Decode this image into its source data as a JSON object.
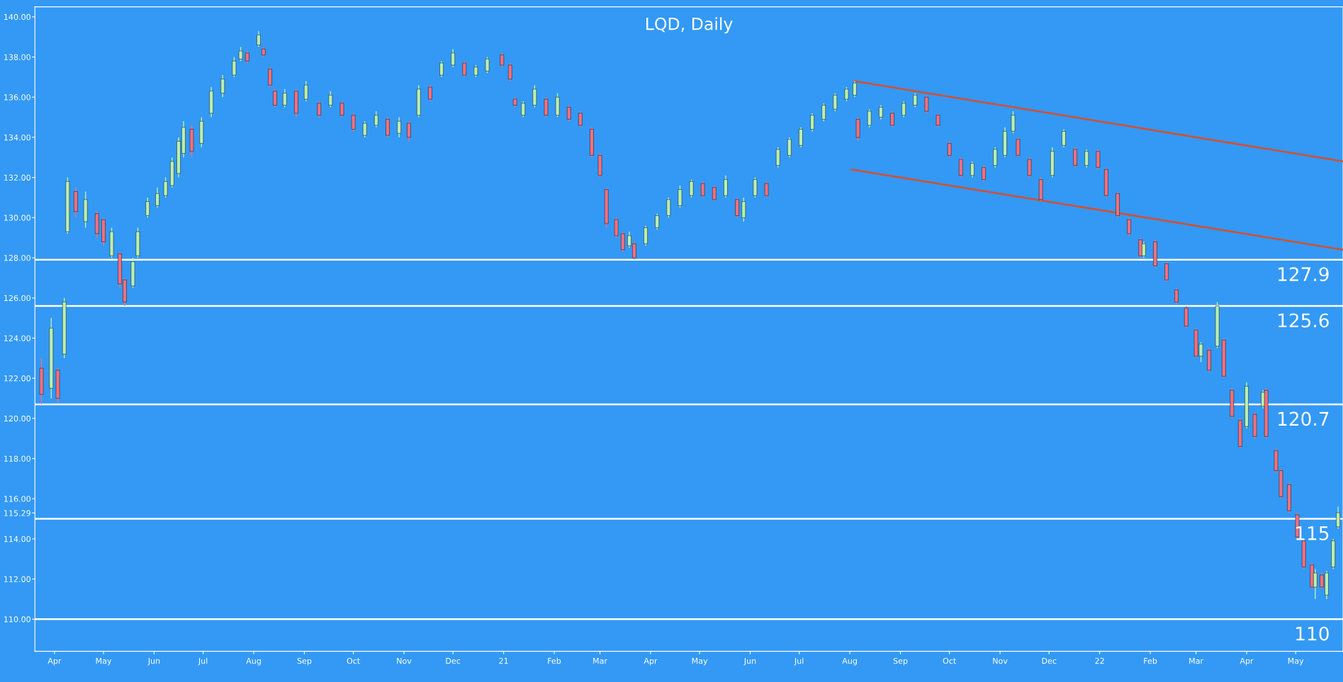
{
  "chart_data": {
    "type": "candlestick",
    "title": "LQD, Daily",
    "x": [
      "2020-03-24",
      "2020-03-30",
      "2020-04-03",
      "2020-04-07",
      "2020-04-09",
      "2020-04-14",
      "2020-04-20",
      "2020-04-27",
      "2020-05-01",
      "2020-05-06",
      "2020-05-11",
      "2020-05-14",
      "2020-05-19",
      "2020-05-22",
      "2020-05-28",
      "2020-06-03",
      "2020-06-08",
      "2020-06-12",
      "2020-06-16",
      "2020-06-19",
      "2020-06-24",
      "2020-06-30",
      "2020-07-06",
      "2020-07-13",
      "2020-07-20",
      "2020-07-24",
      "2020-07-28",
      "2020-08-04",
      "2020-08-07",
      "2020-08-11",
      "2020-08-14",
      "2020-08-20",
      "2020-08-27",
      "2020-09-02",
      "2020-09-10",
      "2020-09-17",
      "2020-09-24",
      "2020-10-01",
      "2020-10-08",
      "2020-10-15",
      "2020-10-22",
      "2020-10-29",
      "2020-11-04",
      "2020-11-10",
      "2020-11-17",
      "2020-11-24",
      "2020-12-01",
      "2020-12-08",
      "2020-12-15",
      "2020-12-22",
      "2020-12-31",
      "2021-01-05",
      "2021-01-08",
      "2021-01-13",
      "2021-01-20",
      "2021-01-27",
      "2021-02-03",
      "2021-02-10",
      "2021-02-17",
      "2021-02-24",
      "2021-03-01",
      "2021-03-05",
      "2021-03-11",
      "2021-03-15",
      "2021-03-19",
      "2021-03-22",
      "2021-03-29",
      "2021-04-05",
      "2021-04-12",
      "2021-04-19",
      "2021-04-26",
      "2021-05-03",
      "2021-05-10",
      "2021-05-17",
      "2021-05-24",
      "2021-05-28",
      "2021-06-04",
      "2021-06-11",
      "2021-06-18",
      "2021-06-25",
      "2021-07-02",
      "2021-07-09",
      "2021-07-16",
      "2021-07-23",
      "2021-07-30",
      "2021-08-04",
      "2021-08-06",
      "2021-08-13",
      "2021-08-20",
      "2021-08-27",
      "2021-09-03",
      "2021-09-10",
      "2021-09-17",
      "2021-09-24",
      "2021-10-01",
      "2021-10-08",
      "2021-10-15",
      "2021-10-22",
      "2021-10-29",
      "2021-11-04",
      "2021-11-09",
      "2021-11-12",
      "2021-11-19",
      "2021-11-26",
      "2021-12-03",
      "2021-12-10",
      "2021-12-17",
      "2021-12-24",
      "2021-12-31",
      "2022-01-05",
      "2022-01-12",
      "2022-01-19",
      "2022-01-26",
      "2022-01-28",
      "2022-02-04",
      "2022-02-11",
      "2022-02-17",
      "2022-02-23",
      "2022-03-01",
      "2022-03-04",
      "2022-03-09",
      "2022-03-14",
      "2022-03-18",
      "2022-03-23",
      "2022-03-28",
      "2022-04-01",
      "2022-04-06",
      "2022-04-11",
      "2022-04-13",
      "2022-04-19",
      "2022-04-22",
      "2022-04-27",
      "2022-05-02",
      "2022-05-06",
      "2022-05-11",
      "2022-05-13",
      "2022-05-17",
      "2022-05-20",
      "2022-05-24",
      "2022-05-27"
    ],
    "ohlc": [
      [
        122.5,
        123.0,
        120.7,
        121.2
      ],
      [
        121.5,
        125.0,
        121.0,
        124.5
      ],
      [
        122.4,
        122.5,
        120.8,
        121.0
      ],
      [
        123.2,
        126.0,
        123.0,
        125.8
      ],
      [
        129.3,
        132.0,
        129.2,
        131.8
      ],
      [
        131.3,
        131.5,
        130.0,
        130.3
      ],
      [
        129.8,
        131.3,
        129.5,
        130.9
      ],
      [
        130.2,
        130.3,
        129.0,
        129.2
      ],
      [
        129.9,
        130.0,
        128.6,
        128.8
      ],
      [
        128.1,
        129.5,
        128.0,
        129.3
      ],
      [
        128.2,
        128.3,
        126.5,
        126.7
      ],
      [
        126.9,
        127.0,
        125.6,
        125.8
      ],
      [
        126.6,
        128.0,
        126.5,
        127.8
      ],
      [
        128.1,
        129.5,
        128.0,
        129.3
      ],
      [
        130.1,
        131.0,
        130.0,
        130.8
      ],
      [
        130.6,
        131.5,
        130.5,
        131.2
      ],
      [
        131.1,
        132.0,
        131.0,
        131.8
      ],
      [
        131.6,
        133.0,
        131.5,
        132.8
      ],
      [
        132.2,
        134.0,
        132.0,
        133.8
      ],
      [
        133.2,
        134.8,
        133.0,
        134.5
      ],
      [
        134.4,
        134.6,
        133.0,
        133.3
      ],
      [
        133.7,
        135.0,
        133.5,
        134.8
      ],
      [
        135.2,
        136.5,
        135.0,
        136.3
      ],
      [
        136.2,
        137.1,
        136.0,
        136.9
      ],
      [
        137.1,
        138.0,
        137.0,
        137.8
      ],
      [
        137.9,
        138.5,
        137.8,
        138.3
      ],
      [
        138.2,
        138.3,
        137.7,
        137.8
      ],
      [
        138.6,
        139.3,
        138.5,
        139.1
      ],
      [
        138.4,
        138.5,
        138.0,
        138.1
      ],
      [
        137.4,
        137.5,
        136.5,
        136.6
      ],
      [
        136.3,
        136.4,
        135.5,
        135.6
      ],
      [
        135.6,
        136.4,
        135.5,
        136.2
      ],
      [
        136.3,
        136.4,
        135.0,
        135.2
      ],
      [
        135.9,
        136.8,
        135.8,
        136.6
      ],
      [
        135.7,
        135.8,
        135.0,
        135.1
      ],
      [
        135.6,
        136.3,
        135.5,
        136.1
      ],
      [
        135.7,
        135.8,
        135.0,
        135.1
      ],
      [
        135.1,
        135.2,
        134.3,
        134.4
      ],
      [
        134.1,
        134.8,
        134.0,
        134.7
      ],
      [
        134.6,
        135.3,
        134.5,
        135.1
      ],
      [
        134.9,
        135.0,
        134.0,
        134.1
      ],
      [
        134.2,
        135.0,
        134.0,
        134.8
      ],
      [
        134.7,
        134.8,
        133.8,
        134.0
      ],
      [
        135.1,
        136.6,
        135.0,
        136.4
      ],
      [
        136.5,
        136.6,
        135.8,
        135.9
      ],
      [
        137.1,
        137.8,
        137.0,
        137.7
      ],
      [
        137.6,
        138.4,
        137.5,
        138.2
      ],
      [
        137.7,
        137.8,
        137.0,
        137.1
      ],
      [
        137.1,
        137.6,
        137.0,
        137.5
      ],
      [
        137.3,
        138.0,
        137.2,
        137.9
      ],
      [
        138.1,
        138.2,
        137.5,
        137.6
      ],
      [
        137.6,
        137.7,
        136.8,
        136.9
      ],
      [
        135.9,
        136.0,
        135.5,
        135.6
      ],
      [
        135.1,
        135.8,
        135.0,
        135.7
      ],
      [
        135.6,
        136.6,
        135.5,
        136.4
      ],
      [
        135.9,
        136.0,
        135.0,
        135.1
      ],
      [
        135.1,
        136.2,
        135.0,
        136.0
      ],
      [
        135.5,
        135.6,
        134.8,
        134.9
      ],
      [
        135.2,
        135.3,
        134.5,
        134.6
      ],
      [
        134.4,
        134.5,
        133.0,
        133.1
      ],
      [
        133.1,
        133.2,
        132.0,
        132.1
      ],
      [
        131.4,
        131.5,
        129.5,
        129.7
      ],
      [
        129.9,
        130.0,
        129.0,
        129.1
      ],
      [
        129.2,
        129.3,
        128.3,
        128.4
      ],
      [
        128.6,
        129.3,
        128.5,
        129.1
      ],
      [
        128.7,
        128.8,
        127.9,
        128.0
      ],
      [
        128.7,
        129.6,
        128.6,
        129.5
      ],
      [
        129.5,
        130.2,
        129.4,
        130.1
      ],
      [
        130.1,
        131.0,
        130.0,
        130.9
      ],
      [
        130.6,
        131.6,
        130.5,
        131.4
      ],
      [
        131.1,
        131.9,
        131.0,
        131.8
      ],
      [
        131.7,
        131.8,
        131.0,
        131.1
      ],
      [
        131.5,
        131.6,
        130.8,
        130.9
      ],
      [
        131.1,
        132.1,
        131.0,
        131.9
      ],
      [
        130.9,
        131.0,
        130.0,
        130.1
      ],
      [
        130.0,
        131.0,
        129.8,
        130.8
      ],
      [
        131.1,
        132.0,
        131.0,
        131.9
      ],
      [
        131.7,
        131.8,
        131.0,
        131.1
      ],
      [
        132.6,
        133.5,
        132.5,
        133.4
      ],
      [
        133.1,
        134.0,
        133.0,
        133.9
      ],
      [
        133.6,
        134.5,
        133.5,
        134.4
      ],
      [
        134.4,
        135.2,
        134.3,
        135.1
      ],
      [
        134.9,
        135.7,
        134.8,
        135.6
      ],
      [
        135.4,
        136.2,
        135.3,
        136.1
      ],
      [
        135.9,
        136.5,
        135.8,
        136.4
      ],
      [
        136.1,
        136.8,
        136.0,
        136.7
      ],
      [
        134.9,
        135.0,
        133.8,
        134.0
      ],
      [
        134.6,
        135.4,
        134.5,
        135.3
      ],
      [
        135.0,
        135.6,
        134.9,
        135.5
      ],
      [
        135.2,
        135.3,
        134.5,
        134.6
      ],
      [
        135.1,
        135.8,
        135.0,
        135.7
      ],
      [
        135.6,
        136.2,
        135.5,
        136.1
      ],
      [
        136.0,
        136.1,
        135.2,
        135.3
      ],
      [
        135.1,
        135.2,
        134.5,
        134.6
      ],
      [
        133.7,
        133.8,
        133.0,
        133.1
      ],
      [
        132.9,
        133.0,
        132.0,
        132.1
      ],
      [
        132.1,
        132.8,
        132.0,
        132.7
      ],
      [
        132.5,
        132.6,
        131.8,
        131.9
      ],
      [
        132.6,
        133.5,
        132.5,
        133.4
      ],
      [
        133.1,
        134.5,
        133.0,
        134.3
      ],
      [
        134.3,
        135.3,
        134.2,
        135.1
      ],
      [
        133.9,
        134.0,
        133.0,
        133.1
      ],
      [
        132.9,
        133.0,
        132.0,
        132.1
      ],
      [
        131.9,
        132.0,
        130.8,
        130.9
      ],
      [
        132.1,
        133.5,
        132.0,
        133.3
      ],
      [
        133.6,
        134.4,
        133.5,
        134.3
      ],
      [
        133.4,
        133.5,
        132.5,
        132.6
      ],
      [
        132.6,
        133.4,
        132.5,
        133.3
      ],
      [
        133.3,
        133.4,
        132.4,
        132.5
      ],
      [
        132.4,
        132.5,
        131.0,
        131.1
      ],
      [
        131.2,
        131.3,
        130.0,
        130.1
      ],
      [
        129.9,
        130.0,
        129.1,
        129.2
      ],
      [
        128.9,
        129.0,
        128.0,
        128.1
      ],
      [
        128.1,
        128.8,
        128.0,
        128.7
      ],
      [
        128.8,
        128.9,
        127.5,
        127.6
      ],
      [
        127.7,
        127.8,
        126.8,
        126.9
      ],
      [
        126.4,
        126.5,
        125.7,
        125.8
      ],
      [
        125.5,
        125.6,
        124.5,
        124.6
      ],
      [
        124.4,
        124.5,
        123.0,
        123.1
      ],
      [
        123.1,
        123.8,
        122.8,
        123.7
      ],
      [
        123.4,
        123.5,
        122.3,
        122.4
      ],
      [
        123.6,
        125.8,
        123.5,
        125.6
      ],
      [
        123.9,
        124.0,
        122.0,
        122.1
      ],
      [
        121.4,
        121.5,
        120.0,
        120.1
      ],
      [
        119.9,
        120.0,
        118.5,
        118.6
      ],
      [
        119.6,
        121.8,
        119.5,
        121.6
      ],
      [
        120.2,
        120.3,
        119.0,
        119.1
      ],
      [
        120.6,
        121.4,
        120.5,
        121.3
      ],
      [
        121.4,
        121.5,
        119.0,
        119.1
      ],
      [
        118.4,
        118.5,
        117.3,
        117.4
      ],
      [
        117.4,
        117.5,
        116.0,
        116.1
      ],
      [
        116.7,
        116.8,
        115.3,
        115.4
      ],
      [
        115.2,
        115.3,
        114.0,
        114.1
      ],
      [
        113.9,
        114.0,
        112.5,
        112.6
      ],
      [
        112.7,
        112.8,
        111.5,
        111.6
      ],
      [
        111.6,
        112.5,
        111.0,
        112.3
      ],
      [
        112.2,
        112.3,
        111.5,
        111.6
      ],
      [
        111.2,
        112.4,
        111.0,
        112.3
      ],
      [
        112.6,
        114.0,
        112.5,
        113.9
      ],
      [
        114.6,
        115.6,
        114.5,
        115.3
      ]
    ],
    "series": [
      {
        "type": "line",
        "color": "#c8553d",
        "x": [
          "2021-08-04",
          "2022-05-30"
        ],
        "values": [
          136.8,
          132.8
        ]
      },
      {
        "type": "line",
        "color": "#c8553d",
        "x": [
          "2021-08-02",
          "2022-05-30"
        ],
        "values": [
          132.4,
          128.4
        ]
      }
    ],
    "ref_lines": [
      {
        "axis": "y",
        "value": 127.9,
        "label": "127.9",
        "color": "#ffffff"
      },
      {
        "axis": "y",
        "value": 125.6,
        "label": "125.6",
        "color": "#ffffff"
      },
      {
        "axis": "y",
        "value": 120.7,
        "label": "120.7",
        "color": "#ffffff"
      },
      {
        "axis": "y",
        "value": 115,
        "label": "115",
        "color": "#ffffff"
      },
      {
        "axis": "y",
        "value": 110,
        "label": "110",
        "color": "#ffffff"
      }
    ],
    "xlim": [
      "2020-03-20",
      "2022-05-30"
    ],
    "xticks": [
      {
        "value": "2020-04-01",
        "label": "Apr"
      },
      {
        "value": "2020-05-01",
        "label": "May"
      },
      {
        "value": "2020-06-01",
        "label": "Jun"
      },
      {
        "value": "2020-07-01",
        "label": "Jul"
      },
      {
        "value": "2020-08-01",
        "label": "Aug"
      },
      {
        "value": "2020-09-01",
        "label": "Sep"
      },
      {
        "value": "2020-10-01",
        "label": "Oct"
      },
      {
        "value": "2020-11-01",
        "label": "Nov"
      },
      {
        "value": "2020-12-01",
        "label": "Dec"
      },
      {
        "value": "2021-01-01",
        "label": "21"
      },
      {
        "value": "2021-02-01",
        "label": "Feb"
      },
      {
        "value": "2021-03-01",
        "label": "Mar"
      },
      {
        "value": "2021-04-01",
        "label": "Apr"
      },
      {
        "value": "2021-05-01",
        "label": "May"
      },
      {
        "value": "2021-06-01",
        "label": "Jun"
      },
      {
        "value": "2021-07-01",
        "label": "Jul"
      },
      {
        "value": "2021-08-01",
        "label": "Aug"
      },
      {
        "value": "2021-09-01",
        "label": "Sep"
      },
      {
        "value": "2021-10-01",
        "label": "Oct"
      },
      {
        "value": "2021-11-01",
        "label": "Nov"
      },
      {
        "value": "2021-12-01",
        "label": "Dec"
      },
      {
        "value": "2022-01-01",
        "label": "22"
      },
      {
        "value": "2022-02-01",
        "label": "Feb"
      },
      {
        "value": "2022-03-01",
        "label": "Mar"
      },
      {
        "value": "2022-04-01",
        "label": "Apr"
      },
      {
        "value": "2022-05-01",
        "label": "May"
      }
    ],
    "ylim": [
      108.4,
      140.5
    ],
    "yticks": [
      {
        "value": 110,
        "label": "110.00"
      },
      {
        "value": 112,
        "label": "112.00"
      },
      {
        "value": 114,
        "label": "114.00"
      },
      {
        "value": 115.29,
        "label": "115.29"
      },
      {
        "value": 116,
        "label": "116.00"
      },
      {
        "value": 118,
        "label": "118.00"
      },
      {
        "value": 120,
        "label": "120.00"
      },
      {
        "value": 122,
        "label": "122.00"
      },
      {
        "value": 124,
        "label": "124.00"
      },
      {
        "value": 126,
        "label": "126.00"
      },
      {
        "value": 128,
        "label": "128.00"
      },
      {
        "value": 130,
        "label": "130.00"
      },
      {
        "value": 132,
        "label": "132.00"
      },
      {
        "value": 134,
        "label": "134.00"
      },
      {
        "value": 136,
        "label": "136.00"
      },
      {
        "value": 138,
        "label": "138.00"
      },
      {
        "value": 140,
        "label": "140.00"
      }
    ]
  }
}
